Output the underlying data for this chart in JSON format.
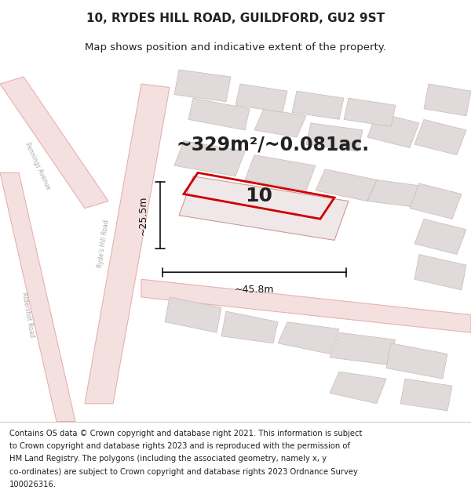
{
  "title_line1": "10, RYDES HILL ROAD, GUILDFORD, GU2 9ST",
  "title_line2": "Map shows position and indicative extent of the property.",
  "area_text": "~329m²/~0.081ac.",
  "property_number": "10",
  "dim_width": "~45.8m",
  "dim_height": "~25.5m",
  "footer_lines": [
    "Contains OS data © Crown copyright and database right 2021. This information is subject",
    "to Crown copyright and database rights 2023 and is reproduced with the permission of",
    "HM Land Registry. The polygons (including the associated geometry, namely x, y",
    "co-ordinates) are subject to Crown copyright and database rights 2023 Ordnance Survey",
    "100026316."
  ],
  "map_bg": "#f7f2f2",
  "road_color": "#e8b0b0",
  "road_fill": "#f5e0e0",
  "building_fill": "#e0dada",
  "building_edge": "#ccb8b8",
  "highlight_fill": "#f0e8e8",
  "highlight_edge": "#cc9999",
  "property_color": "#cc0000",
  "dim_color": "#111111",
  "text_color": "#222222",
  "street_label_color": "#aaaaaa",
  "title_fontsize": 11,
  "subtitle_fontsize": 9.5,
  "area_fontsize": 17,
  "number_fontsize": 18,
  "dim_fontsize": 9,
  "footer_fontsize": 7.2,
  "street_fontsize": 5.5
}
